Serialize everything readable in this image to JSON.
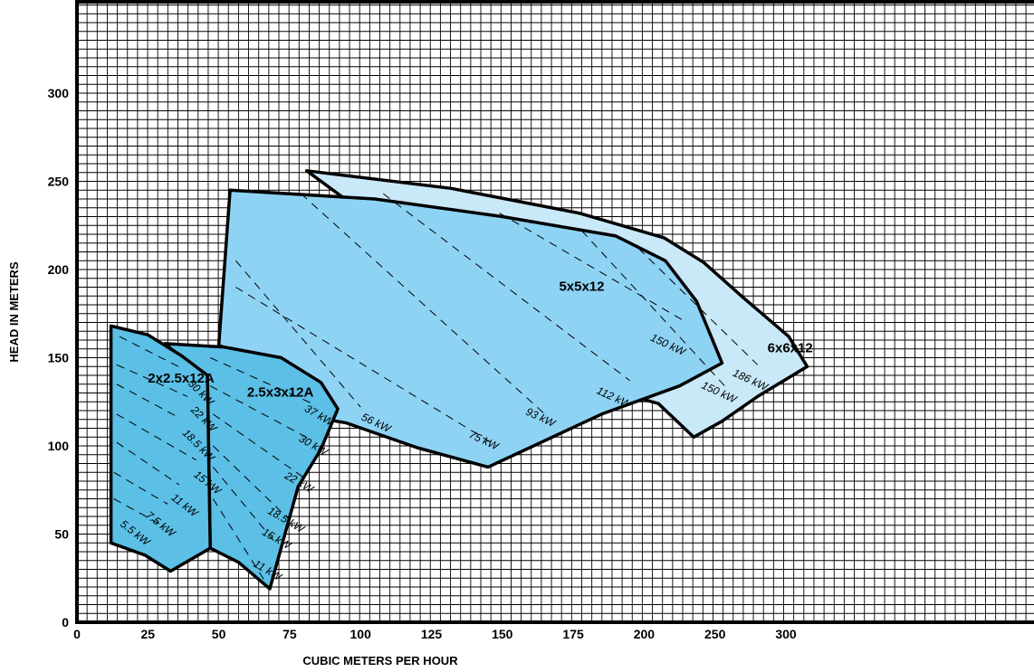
{
  "chart_data": {
    "type": "area",
    "title": "",
    "xlabel": "CUBIC METERS PER HOUR",
    "ylabel": "HEAD IN METERS",
    "xlim": [
      0,
      350
    ],
    "ylim": [
      0,
      350
    ],
    "x_ticks": [
      "0",
      "25",
      "50",
      "75",
      "100",
      "125",
      "150",
      "175",
      "200",
      "250",
      "300"
    ],
    "y_ticks": [
      "0",
      "50",
      "100",
      "150",
      "200",
      "250",
      "300"
    ],
    "grid": true,
    "series": [
      {
        "name": "6x6x12",
        "color": "#c9e8f8",
        "outline": [
          [
            81,
            256
          ],
          [
            132,
            246
          ],
          [
            177,
            232
          ],
          [
            214,
            218
          ],
          [
            242,
            204
          ],
          [
            270,
            184
          ],
          [
            302,
            162
          ],
          [
            315,
            145
          ],
          [
            280,
            128
          ],
          [
            255,
            114
          ],
          [
            235,
            105
          ],
          [
            210,
            124
          ],
          [
            185,
            133
          ]
        ]
      },
      {
        "name": "5x5x12",
        "color": "#8fd3f4",
        "outline": [
          [
            54,
            245
          ],
          [
            105,
            240
          ],
          [
            150,
            230
          ],
          [
            190,
            219
          ],
          [
            215,
            205
          ],
          [
            237,
            182
          ],
          [
            255,
            147
          ],
          [
            225,
            134
          ],
          [
            185,
            118
          ],
          [
            145,
            88
          ],
          [
            120,
            99
          ],
          [
            95,
            113
          ],
          [
            84,
            116
          ],
          [
            78,
            130
          ],
          [
            70,
            145
          ],
          [
            50,
            157
          ]
        ]
      },
      {
        "name": "2.5x3x12A",
        "color": "#5cbfe6",
        "outline": [
          [
            31,
            158
          ],
          [
            52,
            156
          ],
          [
            72,
            150
          ],
          [
            86,
            136
          ],
          [
            92,
            121
          ],
          [
            86,
            98
          ],
          [
            78,
            77
          ],
          [
            68,
            19
          ],
          [
            57,
            34
          ],
          [
            47,
            42
          ],
          [
            46,
            140
          ],
          [
            37,
            150
          ]
        ]
      },
      {
        "name": "2x2.5x12A",
        "color": "#5cbfe6",
        "outline": [
          [
            12,
            168
          ],
          [
            25,
            163
          ],
          [
            37,
            151
          ],
          [
            46,
            140
          ],
          [
            47,
            42
          ],
          [
            33,
            29
          ],
          [
            24,
            38
          ],
          [
            12,
            45
          ]
        ]
      }
    ],
    "power_lines": [
      {
        "label": "5.5 kW",
        "from": [
          13,
          70
        ],
        "to": [
          30,
          55
        ],
        "label_at": [
          15,
          55
        ],
        "angle": 38
      },
      {
        "label": "7.5 kW",
        "from": [
          13,
          85
        ],
        "to": [
          32,
          67
        ],
        "label_at": [
          24,
          60
        ],
        "angle": 38
      },
      {
        "label": "11 kW",
        "from": [
          14,
          102
        ],
        "to": [
          36,
          78
        ],
        "label_at": [
          33,
          70
        ],
        "angle": 38
      },
      {
        "label": "15 kW",
        "from": [
          14,
          118
        ],
        "to": [
          42,
          92
        ],
        "label_at": [
          41,
          83
        ],
        "angle": 38
      },
      {
        "label": "18.5 kW",
        "from": [
          14,
          135
        ],
        "to": [
          36,
          116
        ],
        "label_at": [
          37,
          107
        ],
        "angle": 45
      },
      {
        "label": "22 kW",
        "from": [
          14,
          146
        ],
        "to": [
          39,
          128
        ],
        "label_at": [
          40,
          120
        ],
        "angle": 45
      },
      {
        "label": "30 kW",
        "from": [
          15,
          162
        ],
        "to": [
          37,
          144
        ],
        "label_at": [
          39,
          135
        ],
        "angle": 45
      },
      {
        "label": "11 kW",
        "from": [
          48,
          70
        ],
        "to": [
          66,
          24
        ],
        "label_at": [
          62,
          32
        ],
        "angle": 30
      },
      {
        "label": "15 kW",
        "from": [
          48,
          88
        ],
        "to": [
          70,
          45
        ],
        "label_at": [
          65,
          50
        ],
        "angle": 30
      },
      {
        "label": "18.5 kW",
        "from": [
          48,
          100
        ],
        "to": [
          75,
          58
        ],
        "label_at": [
          67,
          62
        ],
        "angle": 30
      },
      {
        "label": "22 kW",
        "from": [
          48,
          118
        ],
        "to": [
          80,
          82
        ],
        "label_at": [
          73,
          82
        ],
        "angle": 30
      },
      {
        "label": "30 kW",
        "from": [
          47,
          134
        ],
        "to": [
          82,
          104
        ],
        "label_at": [
          78,
          103
        ],
        "angle": 30
      },
      {
        "label": "37 kW",
        "from": [
          47,
          150
        ],
        "to": [
          83,
          124
        ],
        "label_at": [
          80,
          120
        ],
        "angle": 30
      },
      {
        "label": "56 kW",
        "from": [
          56,
          205
        ],
        "to": [
          100,
          122
        ],
        "label_at": [
          100,
          115
        ],
        "angle": 25
      },
      {
        "label": "75 kW",
        "from": [
          56,
          190
        ],
        "to": [
          148,
          100
        ],
        "label_at": [
          138,
          105
        ],
        "angle": 25
      },
      {
        "label": "93 kW",
        "from": [
          79,
          243
        ],
        "to": [
          165,
          118
        ],
        "label_at": [
          158,
          118
        ],
        "angle": 25
      },
      {
        "label": "112 kW",
        "from": [
          108,
          243
        ],
        "to": [
          195,
          137
        ],
        "label_at": [
          183,
          130
        ],
        "angle": 25
      },
      {
        "label": "150 kW",
        "from": [
          149,
          232
        ],
        "to": [
          230,
          170
        ],
        "label_at": [
          204,
          160
        ],
        "angle": 25
      },
      {
        "label": "150 kW",
        "from": [
          178,
          222
        ],
        "to": [
          258,
          133
        ],
        "label_at": [
          240,
          133
        ],
        "angle": 25
      },
      {
        "label": "186 kW",
        "from": [
          198,
          212
        ],
        "to": [
          280,
          146
        ],
        "label_at": [
          262,
          140
        ],
        "angle": 25
      }
    ]
  }
}
